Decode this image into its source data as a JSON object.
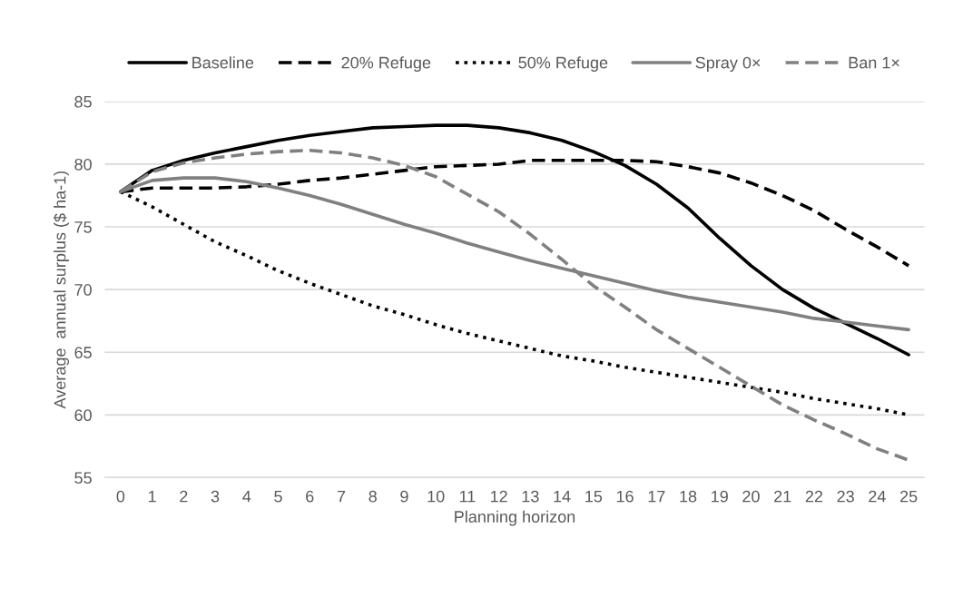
{
  "chart_data": {
    "type": "line",
    "xlabel": "Planning horizon",
    "ylabel": "Average  annual surplus ($ ha-1)",
    "categories": [
      "0",
      "1",
      "2",
      "3",
      "4",
      "5",
      "6",
      "7",
      "8",
      "9",
      "10",
      "11",
      "12",
      "13",
      "14",
      "15",
      "16",
      "17",
      "18",
      "19",
      "20",
      "21",
      "22",
      "23",
      "24",
      "25"
    ],
    "series": [
      {
        "name": "Baseline",
        "color": "#000000",
        "line_style": "solid",
        "values": [
          77.8,
          79.5,
          80.3,
          80.9,
          81.4,
          81.9,
          82.3,
          82.6,
          82.9,
          83.0,
          83.1,
          83.1,
          82.9,
          82.5,
          81.9,
          81.0,
          79.9,
          78.4,
          76.5,
          74.1,
          71.9,
          70.0,
          68.5,
          67.3,
          66.1,
          64.8
        ]
      },
      {
        "name": "20% Refuge",
        "color": "#000000",
        "line_style": "dashed",
        "values": [
          77.8,
          78.1,
          78.1,
          78.1,
          78.2,
          78.4,
          78.7,
          78.9,
          79.2,
          79.5,
          79.8,
          79.9,
          80.0,
          80.3,
          80.3,
          80.3,
          80.3,
          80.2,
          79.8,
          79.3,
          78.5,
          77.5,
          76.3,
          74.8,
          73.4,
          71.9
        ]
      },
      {
        "name": "50% Refuge",
        "color": "#000000",
        "line_style": "dotted",
        "values": [
          77.8,
          76.6,
          75.2,
          73.8,
          72.7,
          71.5,
          70.5,
          69.6,
          68.7,
          68.0,
          67.2,
          66.5,
          65.9,
          65.3,
          64.7,
          64.3,
          63.8,
          63.4,
          63.0,
          62.6,
          62.2,
          61.8,
          61.3,
          60.9,
          60.5,
          60.0
        ]
      },
      {
        "name": "Spray 0×",
        "color": "#808080",
        "line_style": "solid",
        "values": [
          77.8,
          78.7,
          78.9,
          78.9,
          78.6,
          78.1,
          77.5,
          76.8,
          76.0,
          75.2,
          74.5,
          73.7,
          73.0,
          72.3,
          71.7,
          71.1,
          70.5,
          69.9,
          69.4,
          69.0,
          68.6,
          68.2,
          67.7,
          67.4,
          67.1,
          66.8
        ]
      },
      {
        "name": "Ban 1×",
        "color": "#808080",
        "line_style": "dashed",
        "values": [
          77.8,
          79.4,
          80.1,
          80.5,
          80.8,
          81.0,
          81.1,
          80.9,
          80.5,
          79.9,
          79.0,
          77.6,
          76.2,
          74.4,
          72.4,
          70.3,
          68.6,
          66.8,
          65.3,
          63.8,
          62.3,
          60.8,
          59.6,
          58.5,
          57.3,
          56.4
        ]
      }
    ],
    "ylim": [
      55,
      85
    ],
    "yticks": [
      55,
      60,
      65,
      70,
      75,
      80,
      85
    ],
    "grid": "y",
    "legend": "top",
    "marker": "none"
  }
}
